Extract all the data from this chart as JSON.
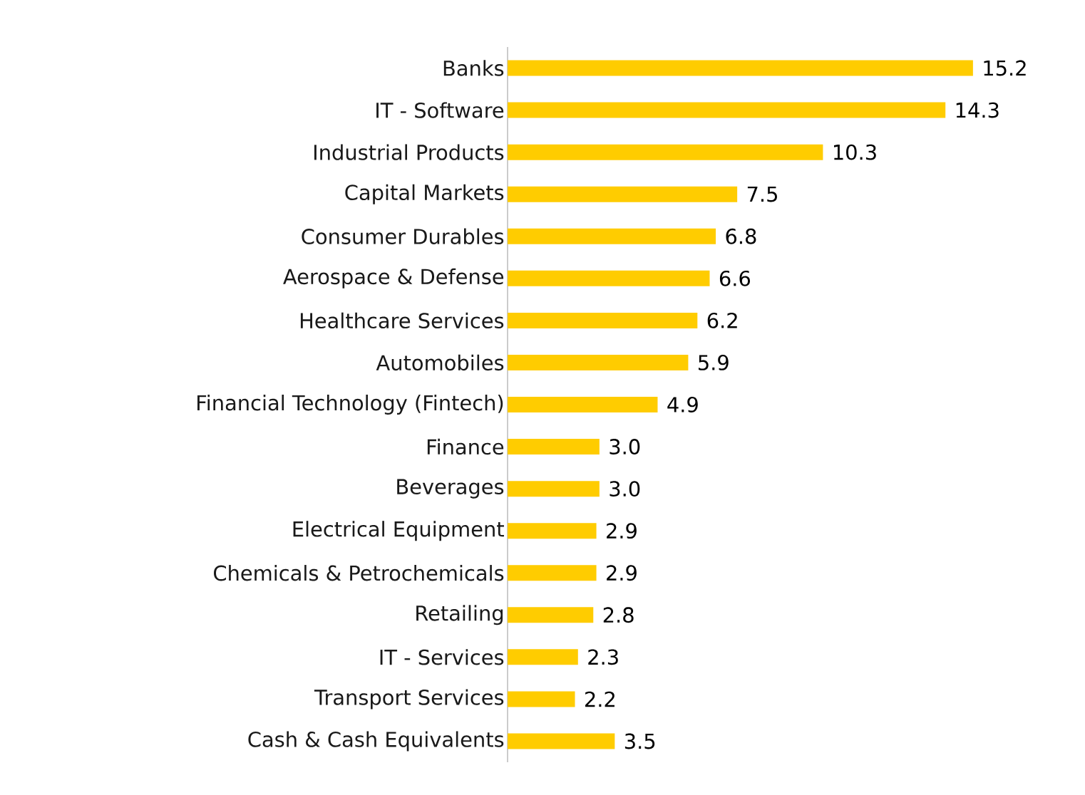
{
  "chart_data": {
    "type": "bar",
    "orientation": "horizontal",
    "value_labels": [
      "15.2",
      "14.3",
      "10.3",
      "7.5",
      "6.8",
      "6.6",
      "6.2",
      "5.9",
      "4.9",
      "3.0",
      "3.0",
      "2.9",
      "2.9",
      "2.8",
      "2.3",
      "2.2",
      "3.5"
    ],
    "color": "#ffcc00",
    "categories": [
      "Banks",
      "IT - Software",
      "Industrial Products",
      "Capital Markets",
      "Consumer Durables",
      "Aerospace & Defense",
      "Healthcare Services",
      "Automobiles",
      "Financial Technology (Fintech)",
      "Finance",
      "Beverages",
      "Electrical Equipment",
      "Chemicals & Petrochemicals",
      "Retailing",
      "IT - Services",
      "Transport Services",
      "Cash & Cash Equivalents"
    ],
    "values": [
      15.2,
      14.3,
      10.3,
      7.5,
      6.8,
      6.6,
      6.2,
      5.9,
      4.9,
      3.0,
      3.0,
      2.9,
      2.9,
      2.8,
      2.3,
      2.2,
      3.5
    ]
  }
}
